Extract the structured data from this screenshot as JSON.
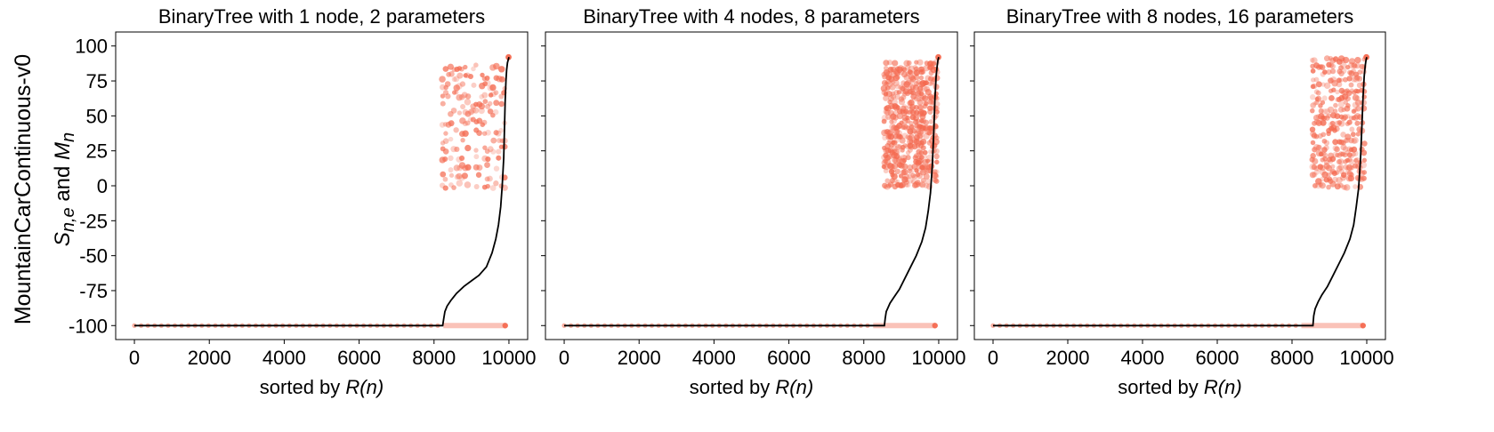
{
  "figure": {
    "row_label": "MountainCarContinuous-v0",
    "y_label_main": "S",
    "y_label_sub": "n,e",
    "y_label_and": " and ",
    "y_label_m": "M",
    "y_label_m_sub": "n",
    "x_label_prefix": "sorted by ",
    "x_label_math": "R(n)"
  },
  "colors": {
    "scatter": "#f4694f",
    "scatter_light": "#f9b3a6",
    "line": "#000000"
  },
  "chart_data": [
    {
      "type": "scatter",
      "title": "BinaryTree with 1 node, 2 parameters",
      "xlim": [
        -500,
        10500
      ],
      "ylim": [
        -110,
        110
      ],
      "xticks": [
        0,
        2000,
        4000,
        6000,
        8000,
        10000
      ],
      "yticks": [
        100,
        75,
        50,
        25,
        0,
        -25,
        -50,
        -75,
        -100
      ],
      "grid": false,
      "series": [
        {
          "kind": "scatter",
          "flat_x": [
            0,
            9900
          ],
          "flat_y": -100,
          "cluster_x": [
            8230,
            9950
          ],
          "cluster_y": [
            0,
            90
          ],
          "cluster_step_y": 6.5,
          "rows_x_step": 75
        },
        {
          "kind": "line",
          "x": [
            0,
            8230,
            8260,
            8290,
            8350,
            8450,
            8600,
            8800,
            9000,
            9200,
            9400,
            9550,
            9650,
            9720,
            9780,
            9820,
            9860,
            9880,
            9900,
            9920,
            9940,
            9960,
            9980,
            10000
          ],
          "y": [
            -100,
            -100,
            -95,
            -90,
            -86,
            -82,
            -77,
            -72,
            -68,
            -64,
            -58,
            -48,
            -38,
            -28,
            -15,
            0,
            20,
            40,
            60,
            75,
            83,
            88,
            90,
            92
          ]
        }
      ]
    },
    {
      "type": "scatter",
      "title": "BinaryTree with 4 nodes, 8 parameters",
      "xlim": [
        -500,
        10500
      ],
      "ylim": [
        -110,
        110
      ],
      "xticks": [
        0,
        2000,
        4000,
        6000,
        8000,
        10000
      ],
      "yticks": [
        100,
        75,
        50,
        25,
        0,
        -25,
        -50,
        -75,
        -100
      ],
      "grid": false,
      "series": [
        {
          "kind": "scatter",
          "flat_x": [
            0,
            9900
          ],
          "flat_y": -100,
          "cluster_x": [
            8550,
            9950
          ],
          "cluster_y": [
            0,
            90
          ],
          "cluster_step_y": 3.5,
          "rows_x_step": 45
        },
        {
          "kind": "line",
          "x": [
            0,
            8550,
            8570,
            8600,
            8700,
            8800,
            8950,
            9100,
            9250,
            9400,
            9550,
            9650,
            9720,
            9780,
            9830,
            9870,
            9900,
            9930,
            9960,
            9980,
            10000
          ],
          "y": [
            -100,
            -100,
            -95,
            -90,
            -84,
            -80,
            -74,
            -66,
            -58,
            -50,
            -40,
            -30,
            -18,
            -5,
            15,
            40,
            62,
            78,
            86,
            90,
            92
          ]
        }
      ]
    },
    {
      "type": "scatter",
      "title": "BinaryTree with 8 nodes, 16 parameters",
      "xlim": [
        -500,
        10500
      ],
      "ylim": [
        -110,
        110
      ],
      "xticks": [
        0,
        2000,
        4000,
        6000,
        8000,
        10000
      ],
      "yticks": [
        100,
        75,
        50,
        25,
        0,
        -25,
        -50,
        -75,
        -100
      ],
      "grid": false,
      "series": [
        {
          "kind": "scatter",
          "flat_x": [
            0,
            9900
          ],
          "flat_y": -100,
          "cluster_x": [
            8550,
            9950
          ],
          "cluster_y": [
            0,
            90
          ],
          "cluster_step_y": 4.5,
          "rows_x_step": 55
        },
        {
          "kind": "line",
          "x": [
            0,
            8560,
            8580,
            8620,
            8700,
            8800,
            8950,
            9100,
            9250,
            9400,
            9550,
            9650,
            9720,
            9780,
            9830,
            9870,
            9900,
            9930,
            9960,
            9980,
            10000
          ],
          "y": [
            -100,
            -100,
            -93,
            -88,
            -83,
            -78,
            -72,
            -64,
            -56,
            -48,
            -38,
            -28,
            -15,
            -2,
            18,
            42,
            63,
            78,
            86,
            90,
            92
          ]
        }
      ]
    }
  ]
}
